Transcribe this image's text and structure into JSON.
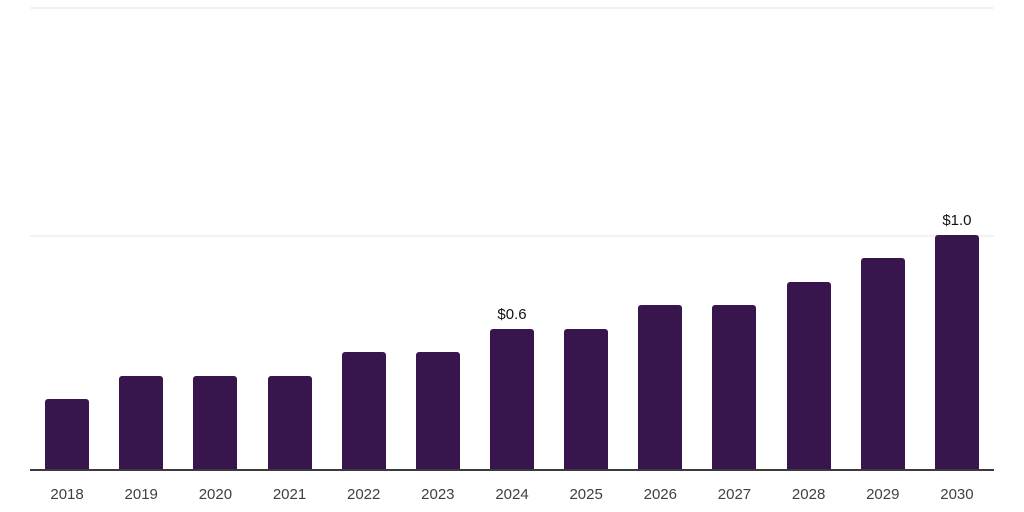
{
  "chart_data": {
    "type": "bar",
    "title": "",
    "xlabel": "",
    "ylabel": "",
    "categories": [
      "2018",
      "2019",
      "2020",
      "2021",
      "2022",
      "2023",
      "2024",
      "2025",
      "2026",
      "2027",
      "2028",
      "2029",
      "2030"
    ],
    "values": [
      0.3,
      0.4,
      0.4,
      0.4,
      0.5,
      0.5,
      0.6,
      0.6,
      0.7,
      0.7,
      0.8,
      0.9,
      1.0
    ],
    "data_labels": [
      null,
      null,
      null,
      null,
      null,
      null,
      "$0.6",
      null,
      null,
      null,
      null,
      null,
      "$1.0"
    ],
    "ylim": [
      0,
      2.0
    ],
    "gridline_values": [
      1.0,
      2.0
    ],
    "grid": "horizontal",
    "legend": "none",
    "bar_color": "#38154d"
  },
  "style": {
    "background_color": "#ffffff",
    "grid_color": "#f2f2f2",
    "axis_color": "#3a3a3a",
    "x_label_color": "#404040",
    "value_label_color": "#111111"
  }
}
